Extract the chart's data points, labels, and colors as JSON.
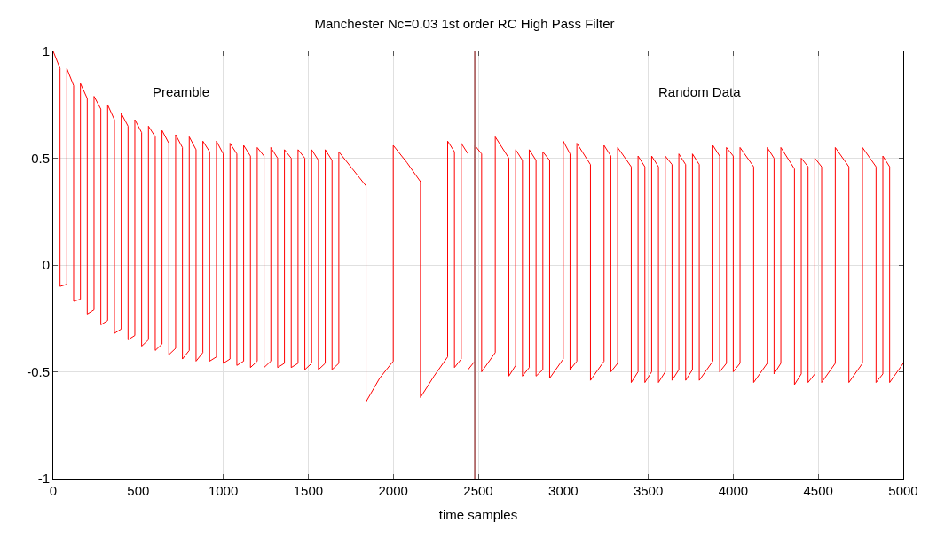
{
  "chart_data": {
    "type": "line",
    "title": "Manchester Nc=0.03 1st order RC High Pass Filter",
    "xlabel": "time samples",
    "xlim": [
      0,
      5000
    ],
    "ylim": [
      -1,
      1
    ],
    "xticks": [
      0,
      500,
      1000,
      1500,
      2000,
      2500,
      3000,
      3500,
      4000,
      4500,
      5000
    ],
    "yticks": [
      -1,
      -0.5,
      0,
      0.5,
      1
    ],
    "grid": true,
    "marker": "none",
    "line_style": "solid",
    "annotations": [
      "Preamble",
      "Random Data"
    ],
    "ref_lines": [
      {
        "axis": "x",
        "value": 2480,
        "color": "#b06a6a"
      }
    ],
    "series": [
      {
        "color": "#ff0000",
        "x": [
          0,
          40,
          40,
          80,
          80,
          120,
          120,
          160,
          160,
          200,
          200,
          240,
          240,
          280,
          280,
          320,
          320,
          360,
          360,
          400,
          400,
          440,
          440,
          480,
          480,
          520,
          520,
          560,
          560,
          600,
          600,
          640,
          640,
          680,
          680,
          720,
          720,
          760,
          760,
          800,
          800,
          840,
          840,
          880,
          880,
          920,
          920,
          960,
          960,
          1000,
          1000,
          1040,
          1040,
          1080,
          1080,
          1120,
          1120,
          1160,
          1160,
          1200,
          1200,
          1240,
          1240,
          1280,
          1280,
          1320,
          1320,
          1360,
          1360,
          1400,
          1400,
          1440,
          1440,
          1480,
          1480,
          1520,
          1520,
          1560,
          1560,
          1600,
          1600,
          1640,
          1640,
          1680,
          1680,
          1760,
          1800,
          1840,
          1840,
          1920,
          2000,
          2000,
          2080,
          2160,
          2160,
          2240,
          2320,
          2320,
          2360,
          2360,
          2400,
          2400,
          2440,
          2440,
          2480,
          2480,
          2520,
          2520,
          2600,
          2600,
          2680,
          2680,
          2720,
          2720,
          2760,
          2760,
          2800,
          2800,
          2840,
          2840,
          2880,
          2880,
          2920,
          2920,
          3000,
          3000,
          3040,
          3040,
          3080,
          3080,
          3160,
          3160,
          3240,
          3240,
          3280,
          3280,
          3320,
          3320,
          3400,
          3400,
          3440,
          3440,
          3480,
          3480,
          3520,
          3520,
          3560,
          3560,
          3600,
          3600,
          3640,
          3640,
          3680,
          3680,
          3720,
          3720,
          3760,
          3760,
          3800,
          3800,
          3880,
          3880,
          3920,
          3920,
          3960,
          3960,
          4000,
          4000,
          4040,
          4040,
          4120,
          4120,
          4200,
          4200,
          4240,
          4240,
          4280,
          4280,
          4360,
          4360,
          4400,
          4400,
          4440,
          4440,
          4480,
          4480,
          4520,
          4520,
          4600,
          4600,
          4680,
          4680,
          4760,
          4760,
          4840,
          4840,
          4880,
          4880,
          4920,
          4920,
          5000
        ],
        "values": [
          1.0,
          0.92,
          -0.1,
          -0.09,
          0.92,
          0.84,
          -0.17,
          -0.16,
          0.85,
          0.78,
          -0.23,
          -0.21,
          0.79,
          0.73,
          -0.28,
          -0.26,
          0.75,
          0.68,
          -0.32,
          -0.3,
          0.71,
          0.65,
          -0.35,
          -0.33,
          0.68,
          0.62,
          -0.38,
          -0.35,
          0.65,
          0.6,
          -0.4,
          -0.37,
          0.63,
          0.57,
          -0.42,
          -0.39,
          0.61,
          0.55,
          -0.44,
          -0.4,
          0.6,
          0.54,
          -0.45,
          -0.41,
          0.58,
          0.53,
          -0.45,
          -0.43,
          0.58,
          0.52,
          -0.46,
          -0.44,
          0.57,
          0.52,
          -0.47,
          -0.45,
          0.56,
          0.51,
          -0.48,
          -0.45,
          0.55,
          0.51,
          -0.48,
          -0.45,
          0.55,
          0.5,
          -0.48,
          -0.46,
          0.54,
          0.5,
          -0.48,
          -0.46,
          0.54,
          0.5,
          -0.49,
          -0.46,
          0.54,
          0.49,
          -0.49,
          -0.46,
          0.54,
          0.49,
          -0.49,
          -0.46,
          0.53,
          0.45,
          0.41,
          0.37,
          -0.64,
          -0.53,
          -0.45,
          0.56,
          0.48,
          0.39,
          -0.62,
          -0.52,
          -0.43,
          0.58,
          0.53,
          -0.48,
          -0.44,
          0.57,
          0.52,
          -0.49,
          -0.45,
          0.56,
          0.52,
          -0.5,
          -0.41,
          0.6,
          0.5,
          -0.52,
          -0.47,
          0.54,
          0.49,
          -0.52,
          -0.48,
          0.54,
          0.49,
          -0.52,
          -0.49,
          0.53,
          0.49,
          -0.53,
          -0.44,
          0.58,
          0.52,
          -0.49,
          -0.45,
          0.57,
          0.47,
          -0.54,
          -0.45,
          0.56,
          0.51,
          -0.5,
          -0.46,
          0.55,
          0.46,
          -0.55,
          -0.5,
          0.51,
          0.46,
          -0.55,
          -0.5,
          0.51,
          0.46,
          -0.55,
          -0.5,
          0.51,
          0.47,
          -0.54,
          -0.49,
          0.52,
          0.47,
          -0.54,
          -0.49,
          0.52,
          0.47,
          -0.54,
          -0.45,
          0.56,
          0.51,
          -0.5,
          -0.46,
          0.55,
          0.51,
          -0.5,
          -0.46,
          0.55,
          0.46,
          -0.55,
          -0.46,
          0.55,
          0.5,
          -0.51,
          -0.46,
          0.55,
          0.45,
          -0.56,
          -0.51,
          0.5,
          0.46,
          -0.55,
          -0.51,
          0.5,
          0.46,
          -0.55,
          -0.46,
          0.55,
          0.46,
          -0.55,
          -0.46,
          0.55,
          0.46,
          -0.55,
          -0.51,
          0.51,
          0.46,
          -0.55,
          -0.46
        ]
      }
    ]
  }
}
